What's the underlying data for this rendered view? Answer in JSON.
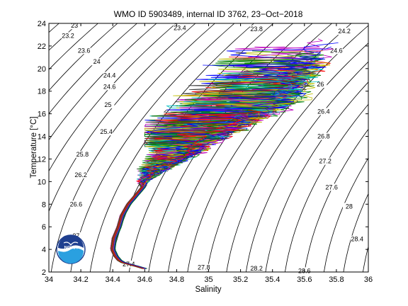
{
  "chart_data": {
    "type": "line",
    "title": "WMO ID 5903489, internal ID 3762, 23−Oct−2018",
    "xlabel": "Salinity",
    "ylabel": "Temperature [°C]",
    "xlim": [
      34,
      36
    ],
    "ylim": [
      2,
      24
    ],
    "x_ticks": [
      "34",
      "34.2",
      "34.4",
      "34.6",
      "34.8",
      "35",
      "35.2",
      "35.4",
      "35.6",
      "35.8",
      "36"
    ],
    "y_ticks": [
      "2",
      "4",
      "6",
      "8",
      "10",
      "12",
      "14",
      "16",
      "18",
      "20",
      "22",
      "24"
    ],
    "grid": false,
    "legend": "none",
    "background_contours": {
      "quantity": "potential density anomaly",
      "labels": [
        {
          "text": "23",
          "s": 34.16,
          "t": 23.8
        },
        {
          "text": "23.2",
          "s": 34.12,
          "t": 22.9
        },
        {
          "text": "23.4",
          "s": 34.82,
          "t": 23.6
        },
        {
          "text": "23.6",
          "s": 34.22,
          "t": 21.6
        },
        {
          "text": "23.8",
          "s": 35.3,
          "t": 23.5
        },
        {
          "text": "24",
          "s": 34.3,
          "t": 20.6
        },
        {
          "text": "24.2",
          "s": 35.85,
          "t": 23.3
        },
        {
          "text": "24.4",
          "s": 34.38,
          "t": 19.4
        },
        {
          "text": "24.6",
          "s": 34.38,
          "t": 18.4
        },
        {
          "text": "24.6",
          "s": 35.8,
          "t": 21.6
        },
        {
          "text": "25",
          "s": 34.37,
          "t": 16.8
        },
        {
          "text": "25.4",
          "s": 34.36,
          "t": 14.4
        },
        {
          "text": "25.8",
          "s": 34.21,
          "t": 12.4
        },
        {
          "text": "26",
          "s": 35.7,
          "t": 18.6
        },
        {
          "text": "26.2",
          "s": 34.2,
          "t": 10.6
        },
        {
          "text": "26.4",
          "s": 35.72,
          "t": 16.2
        },
        {
          "text": "26.6",
          "s": 34.17,
          "t": 8.0
        },
        {
          "text": "26.8",
          "s": 35.72,
          "t": 14.0
        },
        {
          "text": "27",
          "s": 34.17,
          "t": 5.2
        },
        {
          "text": "27.2",
          "s": 35.73,
          "t": 11.8
        },
        {
          "text": "27.4",
          "s": 34.5,
          "t": 2.7
        },
        {
          "text": "27.6",
          "s": 35.77,
          "t": 9.5
        },
        {
          "text": "27.8",
          "s": 34.97,
          "t": 2.4
        },
        {
          "text": "28",
          "s": 35.88,
          "t": 7.8
        },
        {
          "text": "28.2",
          "s": 35.3,
          "t": 2.3
        },
        {
          "text": "28.4",
          "s": 35.93,
          "t": 4.9
        },
        {
          "text": "28.6",
          "s": 35.6,
          "t": 2.1
        }
      ]
    },
    "envelope": {
      "deep_branch": [
        {
          "s": 34.6,
          "t": 2.3
        },
        {
          "s": 34.45,
          "t": 2.9
        },
        {
          "s": 34.42,
          "t": 3.4
        },
        {
          "s": 34.4,
          "t": 4.0
        },
        {
          "s": 34.41,
          "t": 5.0
        },
        {
          "s": 34.44,
          "t": 6.0
        },
        {
          "s": 34.46,
          "t": 7.0
        },
        {
          "s": 34.5,
          "t": 8.0
        },
        {
          "s": 34.56,
          "t": 9.0
        },
        {
          "s": 34.62,
          "t": 10.0
        },
        {
          "s": 34.75,
          "t": 11.0
        },
        {
          "s": 34.9,
          "t": 12.0
        },
        {
          "s": 35.05,
          "t": 13.0
        },
        {
          "s": 35.2,
          "t": 14.0
        },
        {
          "s": 35.35,
          "t": 15.0
        },
        {
          "s": 35.5,
          "t": 16.0
        },
        {
          "s": 35.62,
          "t": 17.0
        },
        {
          "s": 35.72,
          "t": 18.5
        },
        {
          "s": 35.82,
          "t": 20.0
        },
        {
          "s": 35.9,
          "t": 22.5
        }
      ],
      "fresh_limit_salinity": 34.55,
      "salty_limit_salinity": 35.92,
      "warm_top": 23.2,
      "cool_bottom": 10.2
    },
    "series_count": 80,
    "series_colors": [
      "#0000ff",
      "#008000",
      "#ff0000",
      "#00bfbf",
      "#bf00bf",
      "#bfbf00",
      "#404040"
    ]
  },
  "logo": {
    "text": "NOAA",
    "position": "bottom-left"
  }
}
